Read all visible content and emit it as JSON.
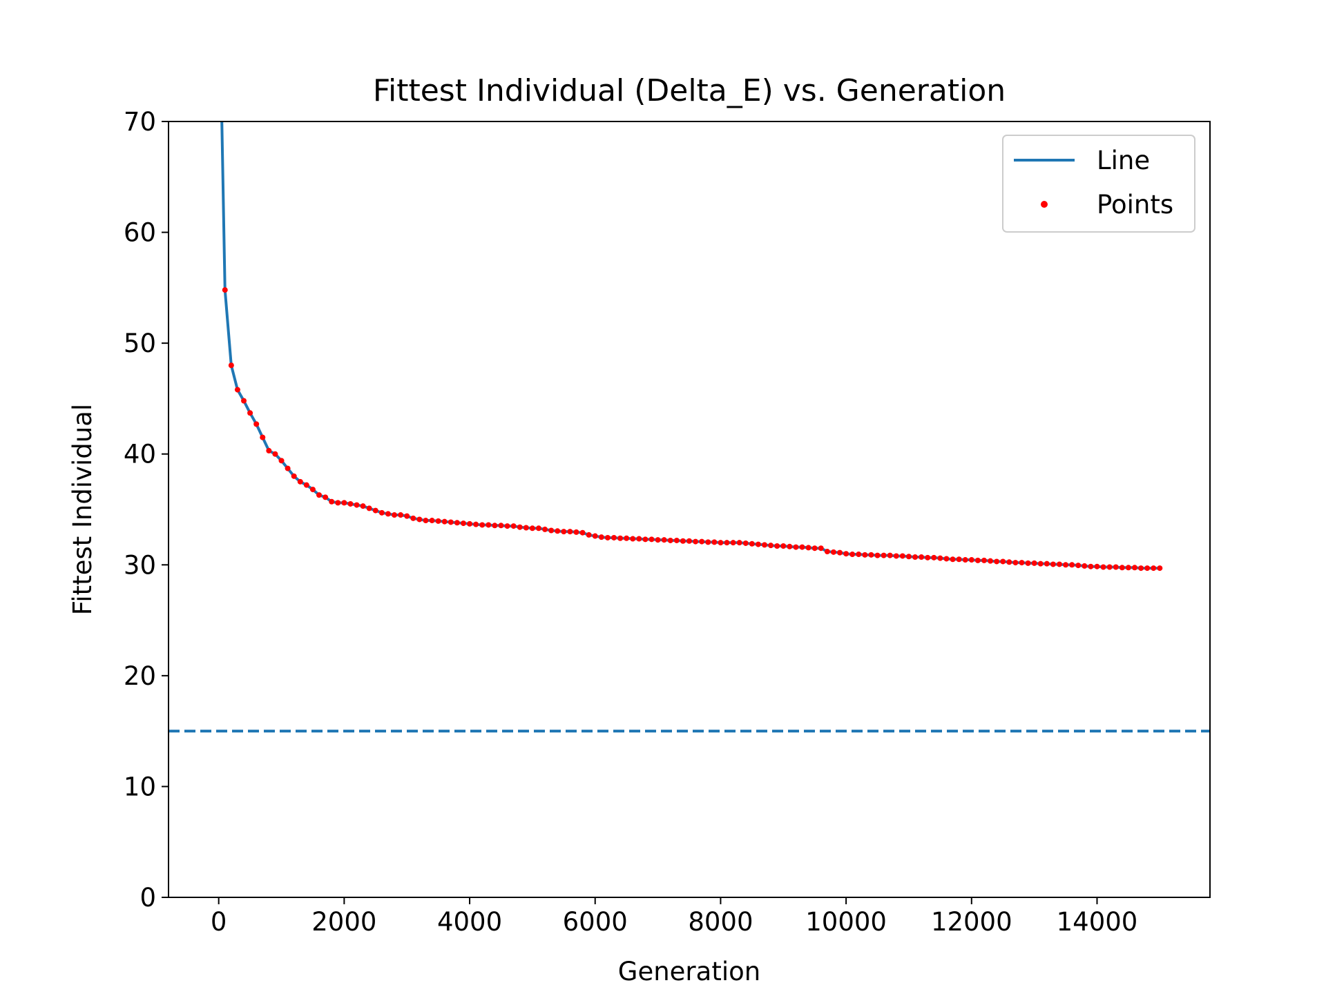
{
  "chart_data": {
    "type": "line",
    "title": "Fittest Individual (Delta_E) vs. Generation",
    "xlabel": "Generation",
    "ylabel": "Fittest Individual",
    "xlim": [
      -800,
      15800
    ],
    "ylim": [
      0,
      70
    ],
    "xticks": [
      0,
      2000,
      4000,
      6000,
      8000,
      10000,
      12000,
      14000
    ],
    "yticks": [
      0,
      10,
      20,
      30,
      40,
      50,
      60,
      70
    ],
    "grid": false,
    "legend_position": "top-right",
    "line_color": "#1f77b4",
    "point_color": "#ff0000",
    "reference_line": {
      "y": 15,
      "style": "dashed",
      "color": "#1f77b4"
    },
    "line_start": [
      {
        "x": 0,
        "y": 85
      },
      {
        "x": 50,
        "y": 70
      }
    ],
    "series": [
      {
        "name": "Line",
        "kind": "line",
        "x": [
          100,
          200,
          300,
          400,
          500,
          600,
          700,
          800,
          900,
          1000,
          1100,
          1200,
          1300,
          1400,
          1500,
          1600,
          1700,
          1800,
          1900,
          2000,
          2100,
          2200,
          2300,
          2400,
          2500,
          2600,
          2700,
          2800,
          2900,
          3000,
          3100,
          3200,
          3300,
          3400,
          3500,
          3600,
          3700,
          3800,
          3900,
          4000,
          4100,
          4200,
          4300,
          4400,
          4500,
          4600,
          4700,
          4800,
          4900,
          5000,
          5100,
          5200,
          5300,
          5400,
          5500,
          5600,
          5700,
          5800,
          5900,
          6000,
          6100,
          6200,
          6300,
          6400,
          6500,
          6600,
          6700,
          6800,
          6900,
          7000,
          7100,
          7200,
          7300,
          7400,
          7500,
          7600,
          7700,
          7800,
          7900,
          8000,
          8100,
          8200,
          8300,
          8400,
          8500,
          8600,
          8700,
          8800,
          8900,
          9000,
          9100,
          9200,
          9300,
          9400,
          9500,
          9600,
          9700,
          9800,
          9900,
          10000,
          10100,
          10200,
          10300,
          10400,
          10500,
          10600,
          10700,
          10800,
          10900,
          11000,
          11100,
          11200,
          11300,
          11400,
          11500,
          11600,
          11700,
          11800,
          11900,
          12000,
          12100,
          12200,
          12300,
          12400,
          12500,
          12600,
          12700,
          12800,
          12900,
          13000,
          13100,
          13200,
          13300,
          13400,
          13500,
          13600,
          13700,
          13800,
          13900,
          14000,
          14100,
          14200,
          14300,
          14400,
          14500,
          14600,
          14700,
          14800,
          14900,
          15000
        ],
        "y": [
          54.8,
          48.0,
          45.8,
          44.8,
          43.7,
          42.7,
          41.5,
          40.3,
          40.0,
          39.4,
          38.7,
          38.0,
          37.5,
          37.2,
          36.8,
          36.3,
          36.1,
          35.7,
          35.6,
          35.6,
          35.5,
          35.4,
          35.3,
          35.1,
          34.9,
          34.7,
          34.6,
          34.5,
          34.5,
          34.4,
          34.2,
          34.1,
          34.0,
          34.0,
          33.95,
          33.9,
          33.85,
          33.8,
          33.75,
          33.7,
          33.65,
          33.6,
          33.6,
          33.55,
          33.55,
          33.5,
          33.5,
          33.4,
          33.35,
          33.3,
          33.3,
          33.2,
          33.1,
          33.05,
          33.0,
          33.0,
          32.95,
          32.9,
          32.7,
          32.6,
          32.5,
          32.45,
          32.45,
          32.4,
          32.4,
          32.35,
          32.35,
          32.3,
          32.3,
          32.25,
          32.25,
          32.2,
          32.2,
          32.15,
          32.15,
          32.1,
          32.1,
          32.05,
          32.05,
          32.0,
          32.0,
          32.0,
          32.0,
          31.95,
          31.9,
          31.85,
          31.8,
          31.75,
          31.7,
          31.7,
          31.65,
          31.6,
          31.6,
          31.55,
          31.5,
          31.5,
          31.2,
          31.15,
          31.1,
          31.0,
          30.95,
          30.95,
          30.9,
          30.9,
          30.85,
          30.85,
          30.85,
          30.8,
          30.8,
          30.75,
          30.7,
          30.7,
          30.65,
          30.65,
          30.6,
          30.55,
          30.5,
          30.5,
          30.45,
          30.45,
          30.4,
          30.4,
          30.35,
          30.3,
          30.3,
          30.25,
          30.2,
          30.2,
          30.15,
          30.15,
          30.1,
          30.1,
          30.05,
          30.05,
          30.0,
          30.0,
          29.95,
          29.9,
          29.85,
          29.85,
          29.8,
          29.8,
          29.8,
          29.75,
          29.75,
          29.75,
          29.7,
          29.7,
          29.7,
          29.7
        ]
      },
      {
        "name": "Points",
        "kind": "scatter",
        "x": [
          100,
          200,
          300,
          400,
          500,
          600,
          700,
          800,
          900,
          1000,
          1100,
          1200,
          1300,
          1400,
          1500,
          1600,
          1700,
          1800,
          1900,
          2000,
          2100,
          2200,
          2300,
          2400,
          2500,
          2600,
          2700,
          2800,
          2900,
          3000,
          3100,
          3200,
          3300,
          3400,
          3500,
          3600,
          3700,
          3800,
          3900,
          4000,
          4100,
          4200,
          4300,
          4400,
          4500,
          4600,
          4700,
          4800,
          4900,
          5000,
          5100,
          5200,
          5300,
          5400,
          5500,
          5600,
          5700,
          5800,
          5900,
          6000,
          6100,
          6200,
          6300,
          6400,
          6500,
          6600,
          6700,
          6800,
          6900,
          7000,
          7100,
          7200,
          7300,
          7400,
          7500,
          7600,
          7700,
          7800,
          7900,
          8000,
          8100,
          8200,
          8300,
          8400,
          8500,
          8600,
          8700,
          8800,
          8900,
          9000,
          9100,
          9200,
          9300,
          9400,
          9500,
          9600,
          9700,
          9800,
          9900,
          10000,
          10100,
          10200,
          10300,
          10400,
          10500,
          10600,
          10700,
          10800,
          10900,
          11000,
          11100,
          11200,
          11300,
          11400,
          11500,
          11600,
          11700,
          11800,
          11900,
          12000,
          12100,
          12200,
          12300,
          12400,
          12500,
          12600,
          12700,
          12800,
          12900,
          13000,
          13100,
          13200,
          13300,
          13400,
          13500,
          13600,
          13700,
          13800,
          13900,
          14000,
          14100,
          14200,
          14300,
          14400,
          14500,
          14600,
          14700,
          14800,
          14900,
          15000
        ],
        "y": [
          54.8,
          48.0,
          45.8,
          44.8,
          43.7,
          42.7,
          41.5,
          40.3,
          40.0,
          39.4,
          38.7,
          38.0,
          37.5,
          37.2,
          36.8,
          36.3,
          36.1,
          35.7,
          35.6,
          35.6,
          35.5,
          35.4,
          35.3,
          35.1,
          34.9,
          34.7,
          34.6,
          34.5,
          34.5,
          34.4,
          34.2,
          34.1,
          34.0,
          34.0,
          33.95,
          33.9,
          33.85,
          33.8,
          33.75,
          33.7,
          33.65,
          33.6,
          33.6,
          33.55,
          33.55,
          33.5,
          33.5,
          33.4,
          33.35,
          33.3,
          33.3,
          33.2,
          33.1,
          33.05,
          33.0,
          33.0,
          32.95,
          32.9,
          32.7,
          32.6,
          32.5,
          32.45,
          32.45,
          32.4,
          32.4,
          32.35,
          32.35,
          32.3,
          32.3,
          32.25,
          32.25,
          32.2,
          32.2,
          32.15,
          32.15,
          32.1,
          32.1,
          32.05,
          32.05,
          32.0,
          32.0,
          32.0,
          32.0,
          31.95,
          31.9,
          31.85,
          31.8,
          31.75,
          31.7,
          31.7,
          31.65,
          31.6,
          31.6,
          31.55,
          31.5,
          31.5,
          31.2,
          31.15,
          31.1,
          31.0,
          30.95,
          30.95,
          30.9,
          30.9,
          30.85,
          30.85,
          30.85,
          30.8,
          30.8,
          30.75,
          30.7,
          30.7,
          30.65,
          30.65,
          30.6,
          30.55,
          30.5,
          30.5,
          30.45,
          30.45,
          30.4,
          30.4,
          30.35,
          30.3,
          30.3,
          30.25,
          30.2,
          30.2,
          30.15,
          30.15,
          30.1,
          30.1,
          30.05,
          30.05,
          30.0,
          30.0,
          29.95,
          29.9,
          29.85,
          29.85,
          29.8,
          29.8,
          29.8,
          29.75,
          29.75,
          29.75,
          29.7,
          29.7,
          29.7,
          29.7
        ]
      }
    ]
  }
}
